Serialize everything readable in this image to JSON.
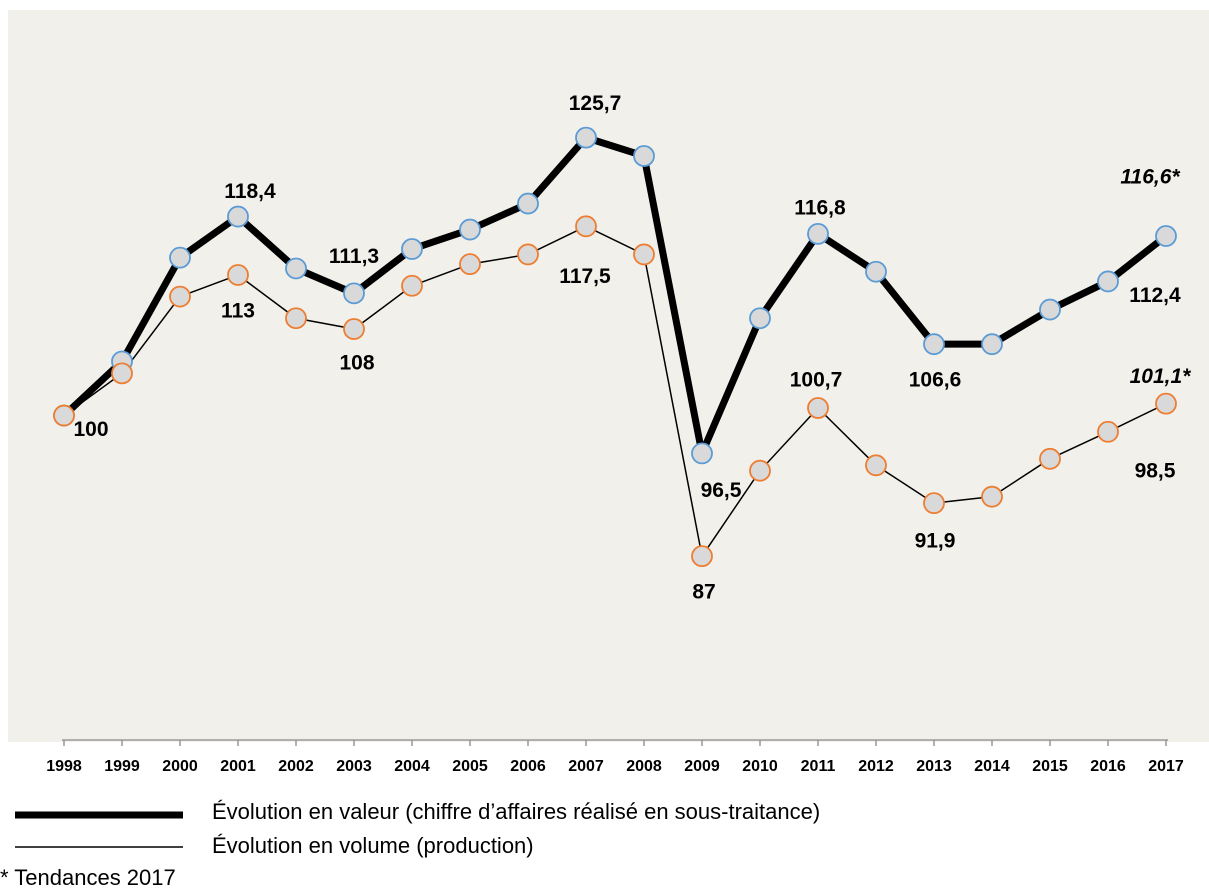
{
  "chart_data": {
    "type": "line",
    "categories": [
      "1998",
      "1999",
      "2000",
      "2001",
      "2002",
      "2003",
      "2004",
      "2005",
      "2006",
      "2007",
      "2008",
      "2009",
      "2010",
      "2011",
      "2012",
      "2013",
      "2014",
      "2015",
      "2016",
      "2017"
    ],
    "series": [
      {
        "name": "Évolution en valeur (chiffre d’affaires réalisé en sous-traitance)",
        "color": "#000000",
        "marker_color": "#5b9bd5",
        "values": [
          100,
          105.0,
          114.6,
          118.4,
          113.6,
          111.3,
          115.4,
          117.2,
          119.6,
          125.7,
          124.0,
          96.5,
          109.0,
          116.8,
          113.3,
          106.6,
          106.6,
          109.8,
          112.4,
          116.6
        ],
        "value_labels": [
          null,
          null,
          null,
          "118,4",
          null,
          "111,3",
          null,
          null,
          null,
          "125,7",
          null,
          "96,5",
          null,
          "116,8",
          null,
          "106,6",
          null,
          null,
          "112,4",
          "116,6*"
        ]
      },
      {
        "name": "Évolution en volume (production)",
        "color": "#000000",
        "marker_color": "#ed7d31",
        "values": [
          100,
          103.9,
          111.0,
          113,
          109.0,
          108,
          112.0,
          114.0,
          114.9,
          117.5,
          114.9,
          87,
          94.9,
          100.7,
          95.4,
          91.9,
          92.5,
          96.0,
          98.5,
          101.1
        ],
        "value_labels": [
          "100",
          null,
          null,
          "113",
          null,
          "108",
          null,
          null,
          null,
          "117,5",
          null,
          "87",
          null,
          "100,7",
          null,
          "91,9",
          null,
          null,
          "98,5",
          "101,1*"
        ]
      }
    ],
    "ylim": [
      70,
      137.5
    ],
    "footnote": "* Tendances 2017"
  }
}
